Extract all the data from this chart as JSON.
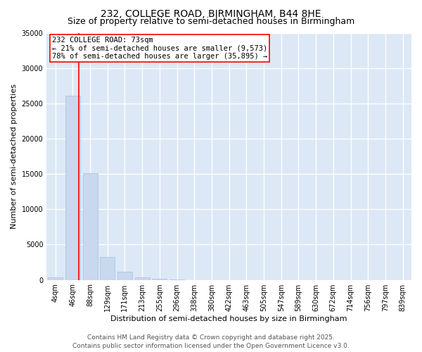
{
  "title_line1": "232, COLLEGE ROAD, BIRMINGHAM, B44 8HE",
  "title_line2": "Size of property relative to semi-detached houses in Birmingham",
  "xlabel": "Distribution of semi-detached houses by size in Birmingham",
  "ylabel": "Number of semi-detached properties",
  "bar_color": "#c8d8ee",
  "bar_edgecolor": "#a8c0e0",
  "background_color": "#dce8f5",
  "fig_background": "#ffffff",
  "grid_color": "#ffffff",
  "bin_labels": [
    "4sqm",
    "46sqm",
    "88sqm",
    "129sqm",
    "171sqm",
    "213sqm",
    "255sqm",
    "296sqm",
    "338sqm",
    "380sqm",
    "422sqm",
    "463sqm",
    "505sqm",
    "547sqm",
    "589sqm",
    "630sqm",
    "672sqm",
    "714sqm",
    "756sqm",
    "797sqm",
    "839sqm"
  ],
  "bar_heights": [
    350,
    26100,
    15100,
    3200,
    1200,
    400,
    200,
    80,
    0,
    0,
    0,
    0,
    0,
    0,
    0,
    0,
    0,
    0,
    0,
    0,
    0
  ],
  "ylim": [
    0,
    35000
  ],
  "yticks": [
    0,
    5000,
    10000,
    15000,
    20000,
    25000,
    30000,
    35000
  ],
  "vline_position": 1.35,
  "annotation_text_line1": "232 COLLEGE ROAD: 73sqm",
  "annotation_text_line2": "← 21% of semi-detached houses are smaller (9,573)",
  "annotation_text_line3": "78% of semi-detached houses are larger (35,895) →",
  "footer_line1": "Contains HM Land Registry data © Crown copyright and database right 2025.",
  "footer_line2": "Contains public sector information licensed under the Open Government Licence v3.0.",
  "title_fontsize": 10,
  "subtitle_fontsize": 9,
  "label_fontsize": 8,
  "tick_fontsize": 7,
  "annotation_fontsize": 7.5,
  "footer_fontsize": 6.5
}
